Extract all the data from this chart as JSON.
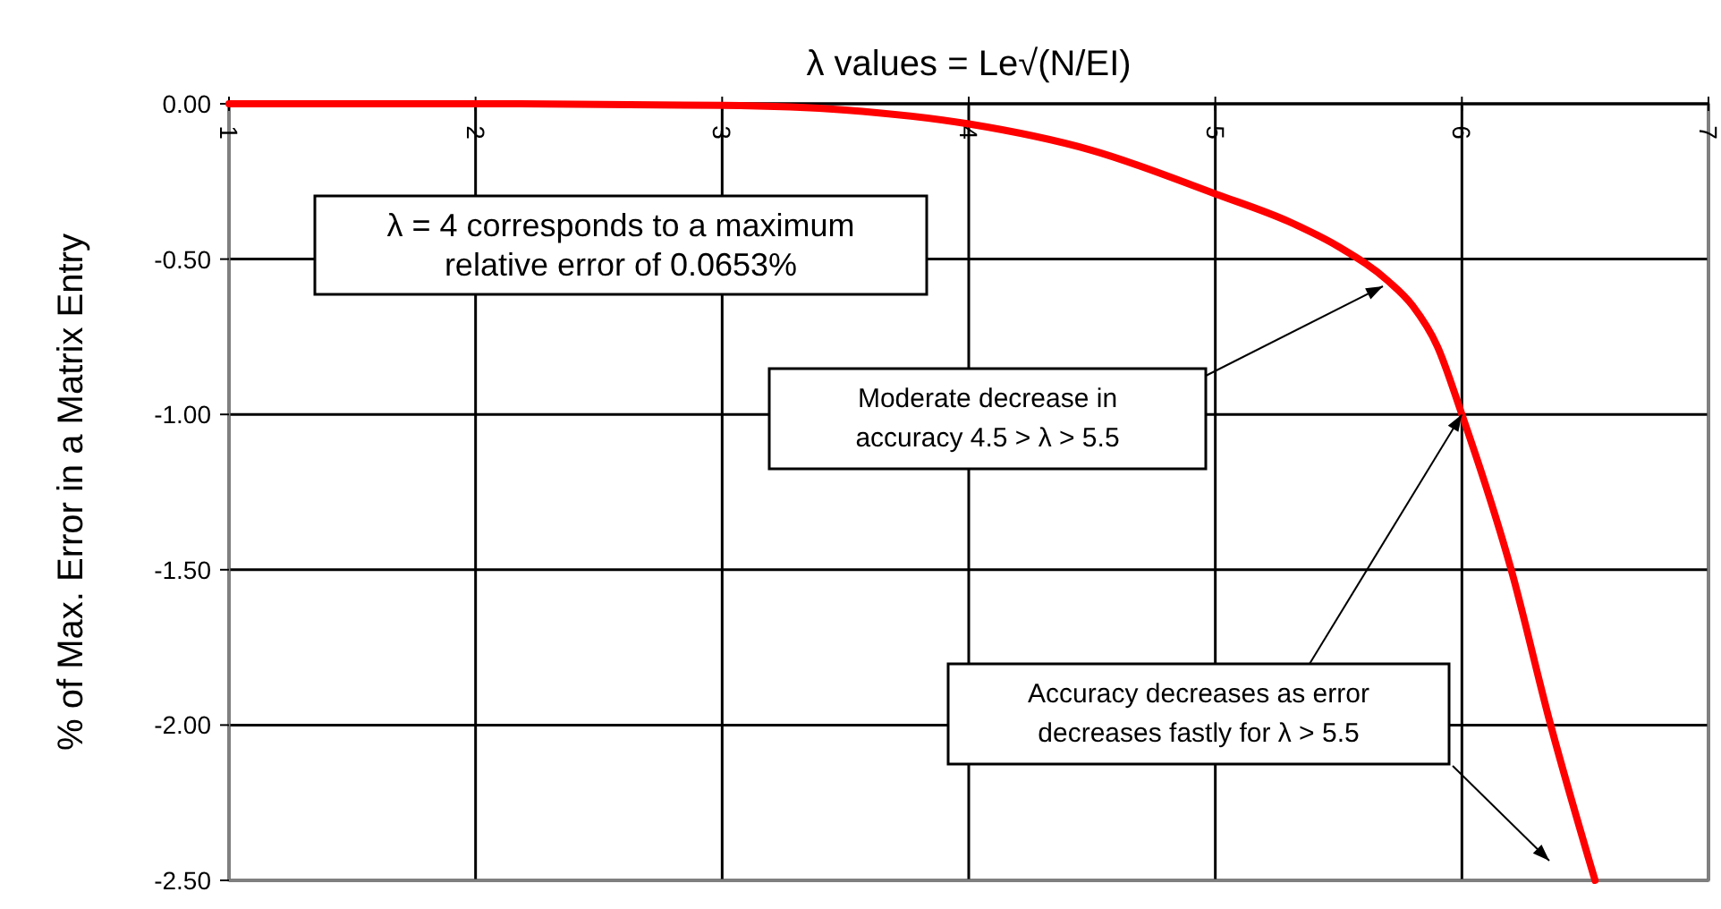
{
  "chart_data": {
    "type": "line",
    "title": "λ values = Le√(N/EI)",
    "ylabel": "% of Max. Error in a Matrix Entry",
    "x": [
      1,
      2,
      3,
      3.5,
      4,
      4.5,
      5,
      5.3,
      5.5,
      5.7,
      5.8,
      5.9,
      6,
      6.2,
      6.36,
      6.54
    ],
    "series": [
      {
        "color": "#ff0000",
        "values": [
          0,
          0,
          -0.005,
          -0.02,
          -0.065,
          -0.15,
          -0.29,
          -0.38,
          -0.46,
          -0.57,
          -0.65,
          -0.78,
          -1.0,
          -1.5,
          -2.0,
          -2.5
        ]
      }
    ],
    "xlim": [
      1,
      7
    ],
    "xticks": [
      1,
      2,
      3,
      4,
      5,
      6,
      7
    ],
    "ylim": [
      -2.5,
      0
    ],
    "yticks": [
      {
        "value": 0,
        "label": "0.00"
      },
      {
        "value": -0.5,
        "label": "-0.50"
      },
      {
        "value": -1,
        "label": "-1.00"
      },
      {
        "value": -1.5,
        "label": "-1.50"
      },
      {
        "value": -2,
        "label": "-2.00"
      },
      {
        "value": -2.5,
        "label": "-2.50"
      }
    ],
    "grid": true,
    "marker": "none",
    "line_style": "solid",
    "annotations": [
      "λ = 4 corresponds to a maximum\nrelative error of 0.0653%",
      "Moderate decrease in\naccuracy 4.5 > λ > 5.5",
      {
        "text": "Accuracy decreases as error\ndecreases fastly for λ > 5.5",
        "x": 6,
        "y": -1.0
      }
    ]
  }
}
